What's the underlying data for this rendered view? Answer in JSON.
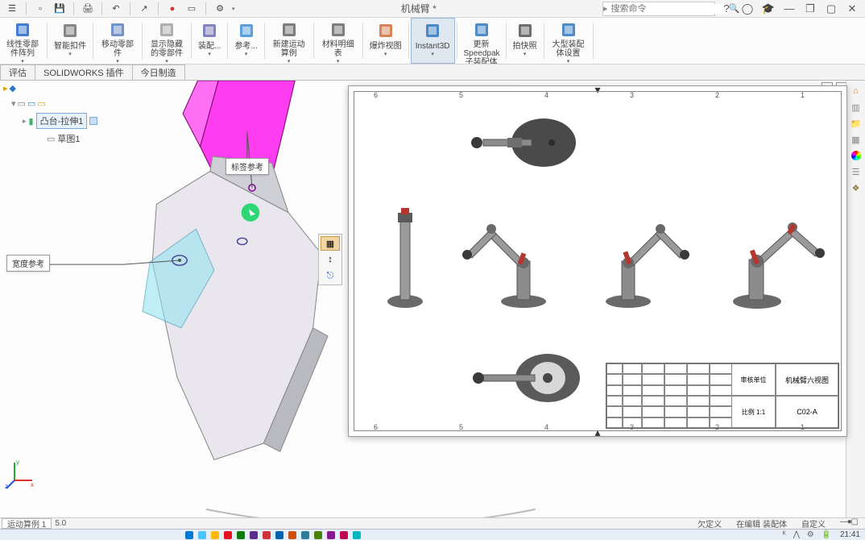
{
  "title": "机械臂 *",
  "search_placeholder": "搜索命令",
  "ribbon": [
    {
      "label": "线性零部件阵列",
      "icon": "#1e65c9"
    },
    {
      "label": "智能扣件",
      "icon": "#707070"
    },
    {
      "label": "移动零部件",
      "icon": "#5a7fbf"
    },
    {
      "label": "显示隐藏的零部件",
      "icon": "#a0a0a0"
    },
    {
      "label": "装配...",
      "icon": "#6f6fb1"
    },
    {
      "label": "参考...",
      "icon": "#3b8fd6"
    },
    {
      "label": "新建运动算例",
      "icon": "#666"
    },
    {
      "label": "材料明细表",
      "icon": "#666"
    },
    {
      "label": "爆炸视图",
      "icon": "#cf6f38"
    },
    {
      "label": "Instant3D",
      "icon": "#2e77c0",
      "selected": true
    },
    {
      "label": "更新Speedpak子装配体",
      "icon": "#2e77c0"
    },
    {
      "label": "拍快照",
      "icon": "#555"
    },
    {
      "label": "大型装配体设置",
      "icon": "#2e77c0"
    }
  ],
  "tabs": [
    "评估",
    "SOLIDWORKS 插件",
    "今日制造"
  ],
  "feature": {
    "name": "凸台-拉伸1",
    "child": "草图1"
  },
  "annotations": {
    "tag_ref": "标签参考",
    "width_ref": "宽度参考"
  },
  "drawing": {
    "title_block_name": "机械臂六视图",
    "title_block_code": "C02-A",
    "tb_col1": "审核单位",
    "tb_col2": "比例",
    "tb_scale": "1:1",
    "ruler_top": [
      "6",
      "5",
      "4",
      "3",
      "2",
      "1"
    ],
    "ruler_bottom": [
      "6",
      "5",
      "4",
      "3",
      "2",
      "1"
    ]
  },
  "status": {
    "tab": "运动算例 1",
    "ver": "5.0",
    "right": [
      "欠定义",
      "在编辑 装配体",
      "自定义"
    ]
  },
  "clock": "21:41",
  "colors": {
    "magenta": "#ff3df0",
    "part_gray": "#c8c8c8",
    "part_light": "#e9e6ed",
    "cyan": "#8fe3f2",
    "green_dot": "#2dd776",
    "robot_dark": "#4a4a4a",
    "robot_base": "#8c8c8c",
    "robot_red": "#b5362f"
  }
}
